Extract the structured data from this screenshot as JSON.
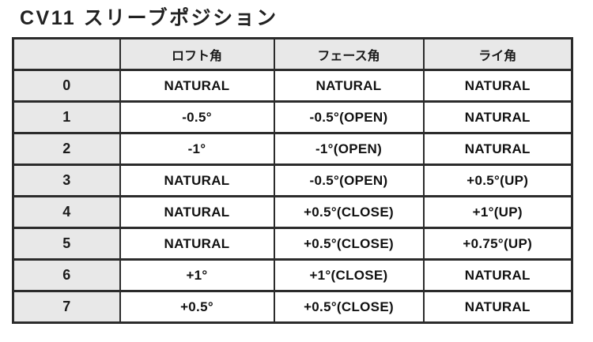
{
  "page": {
    "title": "CV11 スリーブポジション"
  },
  "colors": {
    "header_bg": "#e8e8e8",
    "row_label_bg": "#e8e8e8",
    "cell_bg": "#ffffff",
    "border": "#2b2b2b",
    "text": "#111111"
  },
  "chart_data": {
    "type": "table",
    "title": "CV11 スリーブポジション",
    "columns": [
      "",
      "ロフト角",
      "フェース角",
      "ライ角"
    ],
    "column_meanings": [
      "position",
      "loft-angle",
      "face-angle",
      "lie-angle"
    ],
    "rows": [
      [
        "0",
        "NATURAL",
        "NATURAL",
        "NATURAL"
      ],
      [
        "1",
        "-0.5°",
        "-0.5°(OPEN)",
        "NATURAL"
      ],
      [
        "2",
        "-1°",
        "-1°(OPEN)",
        "NATURAL"
      ],
      [
        "3",
        "NATURAL",
        "-0.5°(OPEN)",
        "+0.5°(UP)"
      ],
      [
        "4",
        "NATURAL",
        "+0.5°(CLOSE)",
        "+1°(UP)"
      ],
      [
        "5",
        "NATURAL",
        "+0.5°(CLOSE)",
        "+0.75°(UP)"
      ],
      [
        "6",
        "+1°",
        "+1°(CLOSE)",
        "NATURAL"
      ],
      [
        "7",
        "+0.5°",
        "+0.5°(CLOSE)",
        "NATURAL"
      ]
    ],
    "layout": {
      "grid": true,
      "header_row_shaded": true,
      "first_column_shaded": true
    }
  }
}
